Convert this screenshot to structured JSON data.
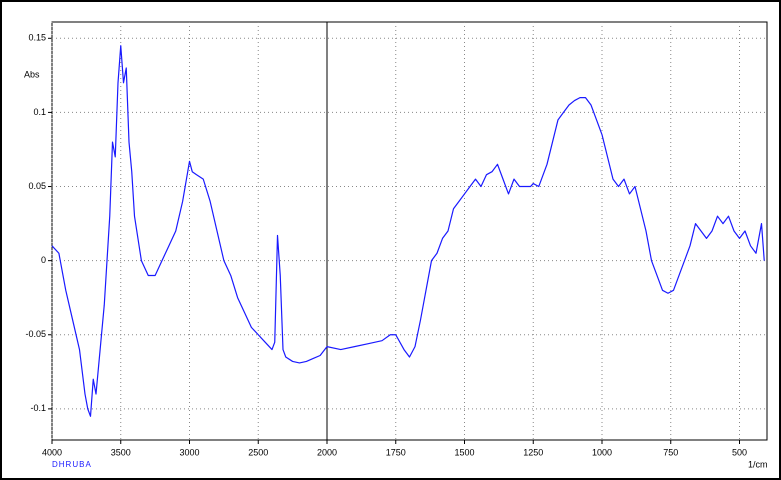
{
  "chart_data": {
    "type": "line",
    "y_label": "Abs",
    "x_label": "1/cm",
    "annotation": "DHRUBA",
    "xlim": [
      4000,
      400
    ],
    "x_break": 2000,
    "xticks": [
      4000,
      3500,
      3000,
      2500,
      2000,
      1750,
      1500,
      1250,
      1000,
      750,
      500
    ],
    "ylim": [
      -0.121,
      0.161
    ],
    "yticks": [
      0.15,
      0.1,
      0.05,
      0,
      -0.05,
      -0.1
    ],
    "grid": true,
    "series": [
      {
        "color": "#1a1aff",
        "x": [
          4000,
          3950,
          3900,
          3850,
          3800,
          3760,
          3740,
          3720,
          3700,
          3680,
          3650,
          3620,
          3600,
          3580,
          3560,
          3540,
          3520,
          3500,
          3480,
          3460,
          3440,
          3420,
          3400,
          3350,
          3300,
          3250,
          3200,
          3150,
          3100,
          3050,
          3000,
          2980,
          2950,
          2900,
          2850,
          2800,
          2750,
          2700,
          2650,
          2600,
          2550,
          2500,
          2450,
          2400,
          2380,
          2360,
          2340,
          2320,
          2300,
          2250,
          2200,
          2150,
          2100,
          2050,
          2000,
          1950,
          1900,
          1850,
          1800,
          1770,
          1750,
          1720,
          1700,
          1680,
          1660,
          1640,
          1620,
          1600,
          1580,
          1560,
          1540,
          1520,
          1500,
          1480,
          1460,
          1440,
          1420,
          1400,
          1380,
          1360,
          1340,
          1320,
          1300,
          1280,
          1260,
          1250,
          1230,
          1200,
          1180,
          1160,
          1140,
          1120,
          1100,
          1080,
          1060,
          1040,
          1020,
          1000,
          980,
          960,
          940,
          920,
          900,
          880,
          860,
          840,
          820,
          800,
          780,
          760,
          740,
          720,
          700,
          680,
          660,
          640,
          620,
          600,
          580,
          560,
          540,
          520,
          500,
          480,
          460,
          440,
          420,
          410
        ],
        "values": [
          0.01,
          0.005,
          -0.02,
          -0.04,
          -0.06,
          -0.09,
          -0.1,
          -0.105,
          -0.08,
          -0.09,
          -0.06,
          -0.03,
          0,
          0.03,
          0.08,
          0.07,
          0.12,
          0.145,
          0.12,
          0.13,
          0.08,
          0.06,
          0.03,
          0,
          -0.01,
          -0.01,
          0,
          0.01,
          0.02,
          0.04,
          0.067,
          0.06,
          0.058,
          0.055,
          0.04,
          0.02,
          0,
          -0.01,
          -0.025,
          -0.035,
          -0.045,
          -0.05,
          -0.055,
          -0.06,
          -0.055,
          0.017,
          -0.01,
          -0.06,
          -0.065,
          -0.068,
          -0.069,
          -0.068,
          -0.066,
          -0.064,
          -0.058,
          -0.06,
          -0.058,
          -0.056,
          -0.054,
          -0.05,
          -0.05,
          -0.06,
          -0.065,
          -0.058,
          -0.04,
          -0.02,
          0,
          0.005,
          0.015,
          0.02,
          0.035,
          0.04,
          0.045,
          0.05,
          0.055,
          0.05,
          0.058,
          0.06,
          0.065,
          0.055,
          0.045,
          0.055,
          0.05,
          0.05,
          0.05,
          0.052,
          0.05,
          0.065,
          0.08,
          0.095,
          0.1,
          0.105,
          0.108,
          0.11,
          0.11,
          0.105,
          0.095,
          0.085,
          0.07,
          0.055,
          0.05,
          0.055,
          0.045,
          0.05,
          0.035,
          0.02,
          0,
          -0.01,
          -0.02,
          -0.022,
          -0.02,
          -0.01,
          0,
          0.01,
          0.025,
          0.02,
          0.015,
          0.02,
          0.03,
          0.025,
          0.03,
          0.02,
          0.015,
          0.02,
          0.01,
          0.005,
          0.025,
          0
        ]
      }
    ]
  }
}
